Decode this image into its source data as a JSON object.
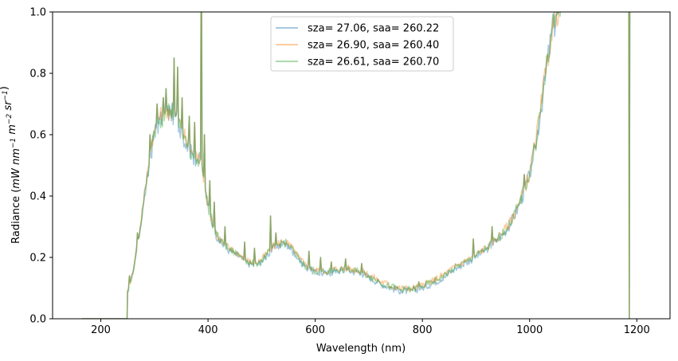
{
  "chart_data": {
    "type": "line",
    "xlabel": "Wavelength (nm)",
    "ylabel": {
      "prefix": "Radiance (",
      "units": [
        {
          "base": "mW nm",
          "sup": "−1"
        },
        {
          "base": " m",
          "sup": "−2"
        },
        {
          "base": " sr",
          "sup": "−1"
        }
      ],
      "suffix": ")"
    },
    "xlim": [
      110,
      1262
    ],
    "ylim": [
      0,
      1.0
    ],
    "xticks": [
      200,
      400,
      600,
      800,
      1000,
      1200
    ],
    "yticks": [
      0.0,
      0.2,
      0.4,
      0.6,
      0.8,
      1.0
    ],
    "ytick_labels": [
      "0.0",
      "0.2",
      "0.4",
      "0.6",
      "0.8",
      "1.0"
    ],
    "grid": false,
    "legend_position": "top-center",
    "series": [
      {
        "name": "sza= 27.06, saa= 260.22",
        "color": "#1f77b4",
        "offset": -0.004
      },
      {
        "name": "sza= 26.90, saa= 260.40",
        "color": "#ff7f0e",
        "offset": 0.004
      },
      {
        "name": "sza= 26.61, saa= 260.70",
        "color": "#2ca02c",
        "offset": 0.0
      }
    ],
    "curve": {
      "x": [
        165,
        248,
        249,
        250,
        260,
        270,
        280,
        290,
        300,
        310,
        320,
        330,
        340,
        350,
        360,
        370,
        380,
        386,
        387,
        388,
        389,
        390,
        395,
        400,
        410,
        420,
        430,
        440,
        450,
        460,
        470,
        480,
        490,
        500,
        510,
        520,
        530,
        540,
        550,
        560,
        570,
        580,
        590,
        600,
        620,
        640,
        660,
        680,
        700,
        720,
        740,
        760,
        780,
        800,
        820,
        840,
        860,
        880,
        900,
        920,
        940,
        960,
        980,
        1000,
        1010,
        1020,
        1030,
        1040,
        1050,
        1060,
        1070,
        1185,
        1186,
        1187,
        1188
      ],
      "y": [
        0.0,
        0.0,
        0.0,
        0.09,
        0.15,
        0.26,
        0.38,
        0.5,
        0.61,
        0.65,
        0.67,
        0.68,
        0.66,
        0.62,
        0.57,
        0.54,
        0.52,
        0.52,
        1.05,
        1.05,
        0.5,
        0.48,
        0.42,
        0.37,
        0.3,
        0.26,
        0.24,
        0.225,
        0.215,
        0.205,
        0.19,
        0.18,
        0.18,
        0.19,
        0.21,
        0.23,
        0.24,
        0.25,
        0.24,
        0.22,
        0.195,
        0.175,
        0.165,
        0.155,
        0.15,
        0.16,
        0.16,
        0.155,
        0.14,
        0.12,
        0.105,
        0.095,
        0.095,
        0.105,
        0.12,
        0.14,
        0.165,
        0.185,
        0.205,
        0.23,
        0.26,
        0.3,
        0.37,
        0.47,
        0.56,
        0.67,
        0.8,
        0.92,
        0.99,
        1.05,
        1.05,
        1.05,
        0.0,
        1.05,
        1.05
      ],
      "spikes": [
        {
          "x": 253,
          "y": 0.14
        },
        {
          "x": 268,
          "y": 0.28
        },
        {
          "x": 285,
          "y": 0.44
        },
        {
          "x": 292,
          "y": 0.6
        },
        {
          "x": 300,
          "y": 0.66
        },
        {
          "x": 305,
          "y": 0.7
        },
        {
          "x": 316,
          "y": 0.72
        },
        {
          "x": 322,
          "y": 0.75
        },
        {
          "x": 330,
          "y": 0.78
        },
        {
          "x": 336,
          "y": 0.85
        },
        {
          "x": 343,
          "y": 0.82
        },
        {
          "x": 352,
          "y": 0.72
        },
        {
          "x": 365,
          "y": 0.66
        },
        {
          "x": 375,
          "y": 0.64
        },
        {
          "x": 393,
          "y": 0.6
        },
        {
          "x": 404,
          "y": 0.45
        },
        {
          "x": 412,
          "y": 0.38
        },
        {
          "x": 432,
          "y": 0.3
        },
        {
          "x": 440,
          "y": 0.345
        },
        {
          "x": 468,
          "y": 0.25
        },
        {
          "x": 486,
          "y": 0.23
        },
        {
          "x": 517,
          "y": 0.335
        },
        {
          "x": 527,
          "y": 0.28
        },
        {
          "x": 550,
          "y": 0.3
        },
        {
          "x": 589,
          "y": 0.22
        },
        {
          "x": 610,
          "y": 0.2
        },
        {
          "x": 630,
          "y": 0.185
        },
        {
          "x": 656,
          "y": 0.195
        },
        {
          "x": 687,
          "y": 0.18
        },
        {
          "x": 720,
          "y": 0.14
        },
        {
          "x": 760,
          "y": 0.09
        },
        {
          "x": 793,
          "y": 0.12
        },
        {
          "x": 820,
          "y": 0.155
        },
        {
          "x": 840,
          "y": 0.2
        },
        {
          "x": 895,
          "y": 0.26
        },
        {
          "x": 930,
          "y": 0.3
        },
        {
          "x": 960,
          "y": 0.36
        },
        {
          "x": 990,
          "y": 0.47
        },
        {
          "x": 1020,
          "y": 0.7
        },
        {
          "x": 1030,
          "y": 0.97
        },
        {
          "x": 1050,
          "y": 1.0
        }
      ]
    }
  }
}
